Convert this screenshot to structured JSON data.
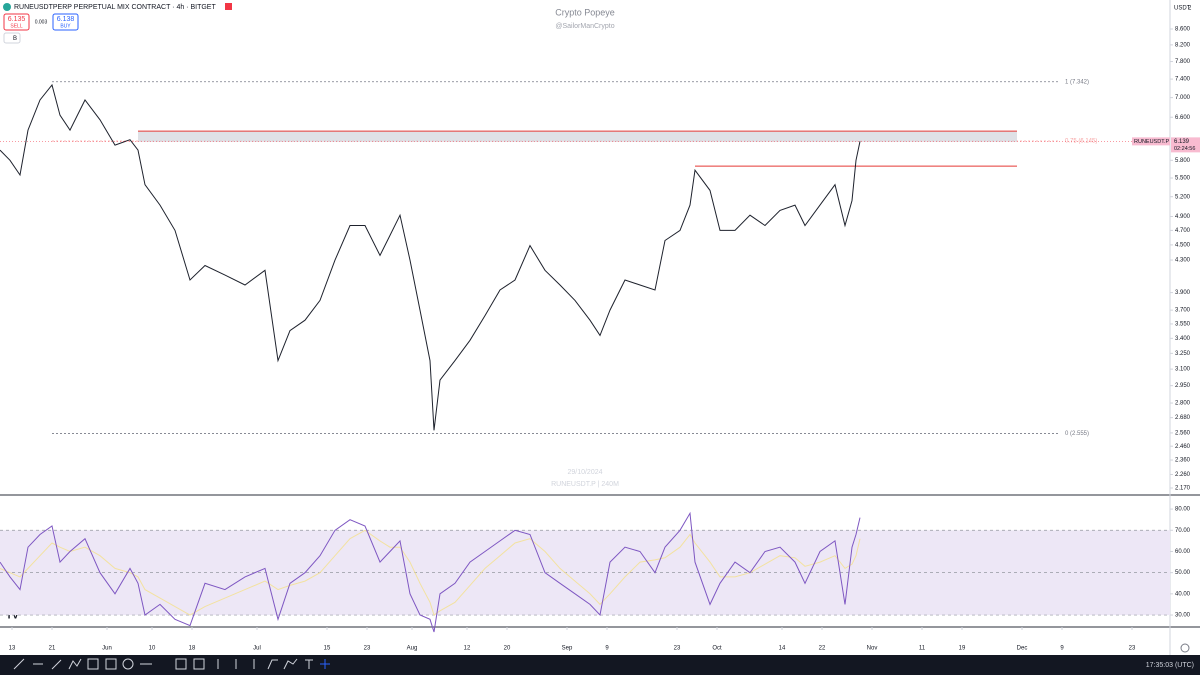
{
  "header": {
    "symbol": "RUNEUSDTPERP PERPETUAL MIX CONTRACT · 4h · BITGET",
    "sell_price": "6.135",
    "sell": "SELL",
    "spread": "0.003",
    "buy_price": "6.138",
    "buy": "BUY",
    "indicator_toggle": "B",
    "watermark_title": "Crypto Popeye",
    "watermark_handle": "@SailorManCrypto",
    "currency": "USDT",
    "scale_mode": "2",
    "date_watermark": "29/10/2024",
    "symbol_watermark": "RUNEUSDT.P | 240M"
  },
  "footer": {
    "clock": "17:35:03 (UTC)"
  },
  "chart_data": [
    {
      "type": "line",
      "log_scale": true,
      "color": "#1e222d",
      "x": [
        -2.4,
        -0.4,
        1.6,
        3.2,
        5.6,
        8,
        9.6,
        11.6,
        14.6,
        17.6,
        20.6,
        23.6,
        25.2,
        26.6,
        29.6,
        32.6,
        35.6,
        38.6,
        42.6,
        46.6,
        50.6,
        53.2,
        55.6,
        58.6,
        61.6,
        64.6,
        67.6,
        70.6,
        73.6,
        75.6,
        77.6,
        79.6,
        81.6,
        83.6,
        84.4,
        85.6,
        88.6,
        91.6,
        94.6,
        97.6,
        100.6,
        103.6,
        106.6,
        109.6,
        112.6,
        115.6,
        117.6,
        119.6,
        122.6,
        125.6,
        128.6,
        130.6,
        133.6,
        135.6,
        136.6,
        139.6,
        141.6,
        144.6,
        147.6,
        150.6,
        153.6,
        156.6,
        158.6,
        161.6,
        164.6,
        166.6,
        168,
        168.8,
        169.6
      ],
      "values": [
        5.98,
        5.8,
        5.55,
        6.35,
        6.95,
        7.27,
        6.64,
        6.35,
        6.95,
        6.55,
        6.07,
        6.17,
        5.98,
        5.39,
        5.07,
        4.7,
        4.05,
        4.23,
        4.11,
        3.99,
        4.17,
        3.18,
        3.48,
        3.59,
        3.81,
        4.3,
        4.77,
        4.77,
        4.36,
        4.63,
        4.92,
        4.3,
        3.7,
        3.18,
        2.58,
        3.0,
        3.18,
        3.38,
        3.64,
        3.93,
        4.05,
        4.49,
        4.17,
        3.99,
        3.81,
        3.59,
        3.43,
        3.7,
        4.05,
        3.99,
        3.93,
        4.56,
        4.7,
        5.07,
        5.63,
        5.3,
        4.7,
        4.7,
        4.92,
        4.77,
        4.99,
        5.07,
        4.77,
        5.07,
        5.39,
        4.77,
        5.14,
        5.8,
        6.139
      ],
      "xlim": [
        -2.4,
        231.6
      ],
      "ylim": [
        2.125,
        9.05
      ],
      "yticks": [
        {
          "value": 8.6,
          "label": "8.600"
        },
        {
          "value": 8.2,
          "label": "8.200"
        },
        {
          "value": 7.8,
          "label": "7.800"
        },
        {
          "value": 7.4,
          "label": "7.400"
        },
        {
          "value": 7.0,
          "label": "7.000"
        },
        {
          "value": 6.6,
          "label": "6.600"
        },
        {
          "value": 5.8,
          "label": "5.800"
        },
        {
          "value": 5.5,
          "label": "5.500"
        },
        {
          "value": 5.2,
          "label": "5.200"
        },
        {
          "value": 4.9,
          "label": "4.900"
        },
        {
          "value": 4.7,
          "label": "4.700"
        },
        {
          "value": 4.5,
          "label": "4.500"
        },
        {
          "value": 4.3,
          "label": "4.300"
        },
        {
          "value": 3.9,
          "label": "3.900"
        },
        {
          "value": 3.7,
          "label": "3.700"
        },
        {
          "value": 3.55,
          "label": "3.550"
        },
        {
          "value": 3.4,
          "label": "3.400"
        },
        {
          "value": 3.25,
          "label": "3.250"
        },
        {
          "value": 3.1,
          "label": "3.100"
        },
        {
          "value": 2.95,
          "label": "2.950"
        },
        {
          "value": 2.8,
          "label": "2.800"
        },
        {
          "value": 2.68,
          "label": "2.680"
        },
        {
          "value": 2.56,
          "label": "2.560"
        },
        {
          "value": 2.46,
          "label": "2.460"
        },
        {
          "value": 2.36,
          "label": "2.360"
        },
        {
          "value": 2.26,
          "label": "2.260"
        },
        {
          "value": 2.17,
          "label": "2.170"
        }
      ],
      "fib_levels": [
        {
          "value": 7.342,
          "label": "1 (7.342)",
          "color": "#787b86"
        },
        {
          "value": 6.145,
          "label": "0.75 (6.145)",
          "color": "#f7a5a5"
        },
        {
          "value": 2.555,
          "label": "0 (2.555)",
          "color": "#787b86"
        }
      ],
      "zone": [
        6.13,
        6.33
      ],
      "resistance": 5.7,
      "last_label": "RUNEUSDT.P",
      "last_price": 6.139,
      "countdown": "02:24:56",
      "xticks": [
        {
          "value": 0,
          "label": "13"
        },
        {
          "value": 8,
          "label": "21"
        },
        {
          "value": 19,
          "label": "Jun"
        },
        {
          "value": 28,
          "label": "10"
        },
        {
          "value": 36,
          "label": "18"
        },
        {
          "value": 49,
          "label": "Jul"
        },
        {
          "value": 63,
          "label": "15"
        },
        {
          "value": 71,
          "label": "23"
        },
        {
          "value": 80,
          "label": "Aug"
        },
        {
          "value": 91,
          "label": "12"
        },
        {
          "value": 99,
          "label": "20"
        },
        {
          "value": 111,
          "label": "Sep"
        },
        {
          "value": 119,
          "label": "9"
        },
        {
          "value": 133,
          "label": "23"
        },
        {
          "value": 141,
          "label": "Oct"
        },
        {
          "value": 154,
          "label": "14"
        },
        {
          "value": 162,
          "label": "22"
        },
        {
          "value": 172,
          "label": "Nov"
        },
        {
          "value": 182,
          "label": "11"
        },
        {
          "value": 190,
          "label": "19"
        },
        {
          "value": 202,
          "label": "Dec"
        },
        {
          "value": 210,
          "label": "9"
        },
        {
          "value": 224,
          "label": "23"
        }
      ]
    },
    {
      "type": "line",
      "band": [
        30,
        70
      ],
      "levels": [
        70,
        50,
        30
      ],
      "band_color": "#ede7f6",
      "x": [
        -2.4,
        -0.4,
        1.6,
        3.2,
        5.6,
        8,
        9.6,
        11.6,
        14.6,
        17.6,
        20.6,
        23.6,
        25.2,
        26.6,
        29.6,
        32.6,
        35.6,
        38.6,
        42.6,
        46.6,
        50.6,
        53.2,
        55.6,
        58.6,
        61.6,
        64.6,
        67.6,
        70.6,
        73.6,
        75.6,
        77.6,
        79.6,
        81.6,
        83.6,
        84.4,
        85.6,
        88.6,
        91.6,
        94.6,
        97.6,
        100.6,
        103.6,
        106.6,
        109.6,
        112.6,
        115.6,
        117.6,
        119.6,
        122.6,
        125.6,
        128.6,
        130.6,
        133.6,
        135.6,
        136.6,
        139.6,
        141.6,
        144.6,
        147.6,
        150.6,
        153.6,
        156.6,
        158.6,
        161.6,
        164.6,
        166.6,
        168,
        168.8,
        169.6
      ],
      "series": [
        {
          "color": "#7e57c2",
          "values": [
            55,
            48,
            42,
            62,
            68,
            72,
            55,
            60,
            66,
            50,
            40,
            52,
            45,
            30,
            35,
            28,
            25,
            45,
            42,
            48,
            52,
            28,
            45,
            50,
            58,
            70,
            75,
            72,
            55,
            60,
            65,
            40,
            30,
            28,
            22,
            40,
            45,
            55,
            60,
            65,
            70,
            68,
            50,
            45,
            40,
            35,
            30,
            55,
            62,
            60,
            50,
            62,
            70,
            78,
            55,
            35,
            45,
            55,
            50,
            60,
            62,
            55,
            45,
            60,
            65,
            35,
            62,
            68,
            76
          ]
        },
        {
          "color": "#f3e2a0",
          "values": [
            52,
            50,
            48,
            52,
            58,
            64,
            62,
            60,
            62,
            58,
            52,
            50,
            48,
            42,
            38,
            34,
            30,
            34,
            38,
            42,
            46,
            42,
            44,
            46,
            50,
            58,
            66,
            70,
            65,
            62,
            62,
            55,
            45,
            36,
            30,
            32,
            36,
            44,
            52,
            58,
            64,
            66,
            60,
            52,
            46,
            40,
            35,
            40,
            48,
            55,
            56,
            57,
            62,
            68,
            64,
            55,
            48,
            48,
            50,
            54,
            58,
            57,
            53,
            55,
            58,
            52,
            54,
            58,
            66
          ]
        }
      ],
      "xlim": [
        -2.4,
        231.6
      ],
      "ylim": [
        25.3,
        85.7
      ],
      "yticks": [
        {
          "value": 80,
          "label": "80.00"
        },
        {
          "value": 70,
          "label": "70.00"
        },
        {
          "value": 60,
          "label": "60.00"
        },
        {
          "value": 50,
          "label": "50.00"
        },
        {
          "value": 40,
          "label": "40.00"
        },
        {
          "value": 30,
          "label": "30.00"
        }
      ]
    }
  ]
}
